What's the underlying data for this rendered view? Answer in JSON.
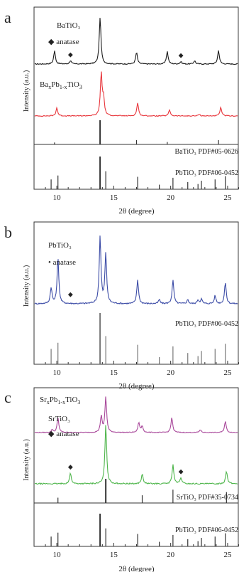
{
  "figure": {
    "xlabel": "2θ (degree)",
    "ylabel": "Intensity (a.u.)"
  },
  "chart_data": [
    {
      "type": "line",
      "panel": "a",
      "xlim": [
        8,
        26
      ],
      "xticks": [
        10,
        15,
        20,
        25
      ],
      "xlabel": "2θ (degree)",
      "ylabel": "Intensity (a.u.)",
      "grid": false,
      "series": [
        {
          "name": "BaTiO3",
          "color": "#1a1a1a",
          "peaks": [
            [
              9.8,
              0.28
            ],
            [
              11.2,
              0.07
            ],
            [
              13.8,
              1.0
            ],
            [
              17.0,
              0.25
            ],
            [
              19.7,
              0.27
            ],
            [
              20.9,
              0.05
            ],
            [
              22.1,
              0.07
            ],
            [
              24.2,
              0.29
            ]
          ],
          "labels": [
            {
              "text": "BaTiO₃"
            },
            {
              "text": "◆ anatase"
            }
          ],
          "markers": [
            {
              "x": 11.2,
              "text": "◆"
            },
            {
              "x": 20.9,
              "text": "◆"
            }
          ]
        },
        {
          "name": "BaxPb1-xTiO3",
          "color": "#e8353b",
          "peaks": [
            [
              10.0,
              0.19
            ],
            [
              13.9,
              1.0
            ],
            [
              14.1,
              0.4
            ],
            [
              17.1,
              0.31
            ],
            [
              19.9,
              0.14
            ],
            [
              22.5,
              0.04
            ],
            [
              24.4,
              0.2
            ]
          ],
          "labels": [
            {
              "text": "BaxPb1-xTiO3",
              "base": "Ba",
              "sub1": "x",
              "mid": "Pb",
              "sub2": "1-x",
              "tail": "TiO",
              "sub3": "3"
            }
          ]
        }
      ],
      "references": [
        {
          "label": "BaTiO₃ PDF#05-0626",
          "sticks": [
            [
              9.8,
              0.08
            ],
            [
              13.8,
              1.0
            ],
            [
              17.0,
              0.18
            ],
            [
              19.7,
              0.1
            ],
            [
              24.2,
              0.18
            ]
          ]
        },
        {
          "label": "PbTiO₃ PDF#06-0452",
          "sticks": [
            [
              9.5,
              0.3
            ],
            [
              10.1,
              0.42
            ],
            [
              13.8,
              1.0
            ],
            [
              14.3,
              0.55
            ],
            [
              17.1,
              0.38
            ],
            [
              19.0,
              0.14
            ],
            [
              20.2,
              0.35
            ],
            [
              21.5,
              0.22
            ],
            [
              22.4,
              0.16
            ],
            [
              22.7,
              0.26
            ],
            [
              23.9,
              0.3
            ],
            [
              24.8,
              0.4
            ]
          ]
        }
      ]
    },
    {
      "type": "line",
      "panel": "b",
      "xlim": [
        8,
        26
      ],
      "xticks": [
        10,
        15,
        20,
        25
      ],
      "xlabel": "2θ (degree)",
      "ylabel": "Intensity (a.u.)",
      "grid": false,
      "series": [
        {
          "name": "PbTiO3",
          "color": "#3b4ba6",
          "peaks": [
            [
              9.5,
              0.24
            ],
            [
              10.1,
              0.68
            ],
            [
              13.8,
              1.0
            ],
            [
              14.3,
              0.75
            ],
            [
              17.1,
              0.36
            ],
            [
              19.0,
              0.06
            ],
            [
              20.2,
              0.35
            ],
            [
              21.5,
              0.06
            ],
            [
              22.4,
              0.06
            ],
            [
              22.7,
              0.07
            ],
            [
              23.9,
              0.12
            ],
            [
              24.8,
              0.32
            ]
          ],
          "labels": [
            {
              "text": "PbTiO₃"
            },
            {
              "text": "• anatase"
            }
          ],
          "markers": [
            {
              "x": 11.2,
              "text": "◆"
            }
          ]
        }
      ],
      "references": [
        {
          "label": "PbTiO₃ PDF#06-0452",
          "sticks": [
            [
              9.5,
              0.3
            ],
            [
              10.1,
              0.42
            ],
            [
              13.8,
              1.0
            ],
            [
              14.3,
              0.55
            ],
            [
              17.1,
              0.38
            ],
            [
              19.0,
              0.14
            ],
            [
              20.2,
              0.35
            ],
            [
              21.5,
              0.22
            ],
            [
              22.4,
              0.16
            ],
            [
              22.7,
              0.26
            ],
            [
              23.9,
              0.3
            ],
            [
              24.8,
              0.4
            ]
          ]
        }
      ]
    },
    {
      "type": "line",
      "panel": "c",
      "xlim": [
        8,
        26
      ],
      "xticks": [
        10,
        15,
        20,
        25
      ],
      "xlabel": "2θ (degree)",
      "ylabel": "Intensity (a.u.)",
      "grid": false,
      "series": [
        {
          "name": "SrxPb1-xTiO3",
          "color": "#a8479a",
          "peaks": [
            [
              9.6,
              0.08
            ],
            [
              10.1,
              0.42
            ],
            [
              13.9,
              0.46
            ],
            [
              14.3,
              1.0
            ],
            [
              17.2,
              0.28
            ],
            [
              17.5,
              0.18
            ],
            [
              20.1,
              0.42
            ],
            [
              22.6,
              0.08
            ],
            [
              24.8,
              0.32
            ]
          ],
          "labels": [
            {
              "text": "SrxPb1-xTiO3",
              "base": "Sr",
              "sub1": "x",
              "mid": "Pb",
              "sub2": "1-x",
              "tail": "TiO",
              "sub3": "3"
            }
          ]
        },
        {
          "name": "SrTiO3",
          "color": "#4db54a",
          "peaks": [
            [
              11.2,
              0.18
            ],
            [
              14.3,
              1.0
            ],
            [
              17.5,
              0.16
            ],
            [
              20.2,
              0.32
            ],
            [
              20.9,
              0.1
            ],
            [
              24.9,
              0.22
            ]
          ],
          "labels": [
            {
              "text": "SrTiO₃"
            },
            {
              "text": "◆ anatase"
            }
          ],
          "markers": [
            {
              "x": 11.2,
              "text": "◆"
            },
            {
              "x": 20.9,
              "text": "◆"
            }
          ]
        }
      ],
      "references": [
        {
          "label": "SrTiO₃ PDF#35-0734",
          "sticks": [
            [
              10.1,
              0.22
            ],
            [
              14.3,
              1.0
            ],
            [
              17.5,
              0.32
            ],
            [
              20.2,
              0.55
            ],
            [
              24.9,
              0.45
            ]
          ]
        },
        {
          "label": "PbTiO₃ PDF#06-0452",
          "sticks": [
            [
              9.5,
              0.3
            ],
            [
              10.1,
              0.42
            ],
            [
              13.8,
              1.0
            ],
            [
              14.3,
              0.55
            ],
            [
              17.1,
              0.38
            ],
            [
              19.0,
              0.14
            ],
            [
              20.2,
              0.35
            ],
            [
              21.5,
              0.22
            ],
            [
              22.4,
              0.16
            ],
            [
              22.7,
              0.26
            ],
            [
              23.9,
              0.3
            ],
            [
              24.8,
              0.4
            ]
          ]
        }
      ]
    }
  ]
}
